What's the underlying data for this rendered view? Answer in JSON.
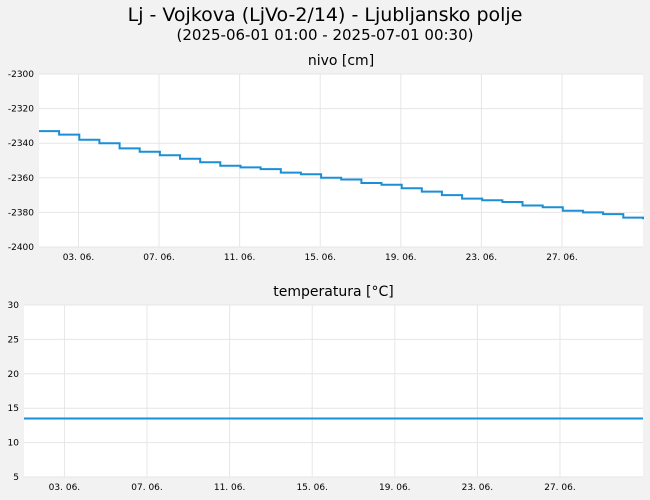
{
  "header": {
    "title": "Lj - Vojkova (LjVo-2/14) - Ljubljansko polje",
    "subtitle": "(2025-06-01 01:00 - 2025-07-01 00:30)"
  },
  "colors": {
    "line": "#1a8fd6",
    "grid": "#e6e6e6",
    "panel": "#ffffff",
    "background": "#f2f2f2"
  },
  "chart_data": [
    {
      "type": "line",
      "title": "nivo [cm]",
      "x_range": [
        "2025-06-01 01:00",
        "2025-07-01 00:30"
      ],
      "x_ticks": [
        "03. 06.",
        "07. 06.",
        "11. 06.",
        "15. 06.",
        "19. 06.",
        "23. 06.",
        "27. 06."
      ],
      "y_ticks": [
        "-2300",
        "-2320",
        "-2340",
        "-2360",
        "-2380",
        "-2400"
      ],
      "ylim": [
        -2400,
        -2300
      ],
      "grid": true,
      "series": [
        {
          "values": [
            [
              "2025-06-01 01:00",
              -2333
            ],
            [
              "2025-06-02 01:00",
              -2335
            ],
            [
              "2025-06-03 01:00",
              -2338
            ],
            [
              "2025-06-04 01:00",
              -2340
            ],
            [
              "2025-06-05 01:00",
              -2343
            ],
            [
              "2025-06-06 01:00",
              -2345
            ],
            [
              "2025-06-07 01:00",
              -2347
            ],
            [
              "2025-06-08 01:00",
              -2349
            ],
            [
              "2025-06-09 01:00",
              -2351
            ],
            [
              "2025-06-10 01:00",
              -2353
            ],
            [
              "2025-06-11 01:00",
              -2354
            ],
            [
              "2025-06-12 01:00",
              -2355
            ],
            [
              "2025-06-13 01:00",
              -2357
            ],
            [
              "2025-06-14 01:00",
              -2358
            ],
            [
              "2025-06-15 01:00",
              -2360
            ],
            [
              "2025-06-16 01:00",
              -2361
            ],
            [
              "2025-06-17 01:00",
              -2363
            ],
            [
              "2025-06-18 01:00",
              -2364
            ],
            [
              "2025-06-19 01:00",
              -2366
            ],
            [
              "2025-06-20 01:00",
              -2368
            ],
            [
              "2025-06-21 01:00",
              -2370
            ],
            [
              "2025-06-22 01:00",
              -2372
            ],
            [
              "2025-06-23 01:00",
              -2373
            ],
            [
              "2025-06-24 01:00",
              -2374
            ],
            [
              "2025-06-25 01:00",
              -2376
            ],
            [
              "2025-06-26 01:00",
              -2377
            ],
            [
              "2025-06-27 01:00",
              -2379
            ],
            [
              "2025-06-28 01:00",
              -2380
            ],
            [
              "2025-06-29 01:00",
              -2381
            ],
            [
              "2025-06-30 01:00",
              -2383
            ],
            [
              "2025-07-01 00:30",
              -2384
            ]
          ]
        }
      ]
    },
    {
      "type": "line",
      "title": "temperatura [°C]",
      "x_range": [
        "2025-06-01 01:00",
        "2025-07-01 00:30"
      ],
      "x_ticks": [
        "03. 06.",
        "07. 06.",
        "11. 06.",
        "15. 06.",
        "19. 06.",
        "23. 06.",
        "27. 06."
      ],
      "y_ticks": [
        "30",
        "25",
        "20",
        "15",
        "10",
        "5"
      ],
      "ylim": [
        5,
        30
      ],
      "grid": true,
      "series": [
        {
          "values": [
            [
              "2025-06-01 01:00",
              13.5
            ],
            [
              "2025-07-01 00:30",
              13.5
            ]
          ]
        }
      ]
    }
  ]
}
